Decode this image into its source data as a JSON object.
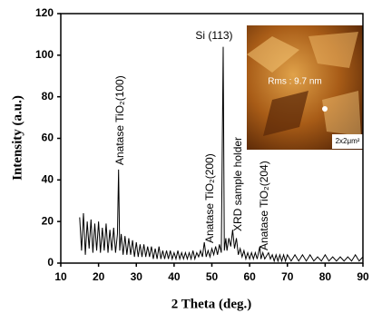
{
  "chart_data": {
    "type": "line",
    "xlabel": "2 Theta (deg.)",
    "ylabel": "Intensity (a.u.)",
    "x": [
      15,
      15.5,
      16,
      16.5,
      17,
      17.5,
      18,
      18.5,
      19,
      19.5,
      20,
      20.5,
      21,
      21.5,
      22,
      22.5,
      23,
      23.5,
      24,
      24.5,
      25,
      25.3,
      25.6,
      26,
      26.5,
      27,
      27.5,
      28,
      28.5,
      29,
      29.5,
      30,
      30.5,
      31,
      31.5,
      32,
      32.5,
      33,
      33.5,
      34,
      34.5,
      35,
      35.5,
      36,
      36.5,
      37,
      37.5,
      38,
      38.5,
      39,
      39.5,
      40,
      40.5,
      41,
      41.5,
      42,
      42.5,
      43,
      43.5,
      44,
      44.5,
      45,
      45.5,
      46,
      46.5,
      47,
      47.5,
      48,
      48.5,
      49,
      49.5,
      50,
      50.5,
      51,
      51.5,
      52,
      52.5,
      53,
      53.3,
      53.7,
      54,
      54.5,
      55,
      55.5,
      56,
      56.5,
      57,
      57.5,
      58,
      58.5,
      59,
      59.5,
      60,
      60.5,
      61,
      61.5,
      62,
      62.7,
      63,
      63.5,
      64,
      65,
      65.5,
      66,
      66.5,
      67,
      67.5,
      68,
      68.5,
      69,
      69.5,
      70,
      71,
      72,
      73,
      74,
      75,
      76,
      77,
      78,
      79,
      80,
      81,
      82,
      83,
      84,
      85,
      86,
      87,
      88,
      89,
      90
    ],
    "values": [
      22,
      6,
      24,
      4,
      20,
      7,
      21,
      5,
      19,
      6,
      20,
      5,
      17,
      6,
      19,
      5,
      16,
      6,
      17,
      5,
      14,
      45,
      6,
      14,
      4,
      13,
      4,
      12,
      4,
      11,
      3,
      10,
      3,
      9,
      3,
      9,
      3,
      8,
      3,
      8,
      2,
      7,
      2,
      8,
      2,
      6,
      2,
      6,
      2,
      6,
      2,
      5,
      2,
      6,
      2,
      5,
      2,
      5,
      2,
      5,
      2,
      6,
      2,
      5,
      3,
      6,
      3,
      10,
      3,
      6,
      3,
      7,
      4,
      8,
      4,
      9,
      5,
      104,
      6,
      12,
      6,
      12,
      8,
      16,
      7,
      12,
      4,
      7,
      3,
      6,
      2,
      5,
      2,
      5,
      2,
      5,
      2,
      8,
      2,
      5,
      2,
      5,
      2,
      4,
      1,
      4,
      1,
      4,
      1,
      4,
      1,
      4,
      1,
      4,
      1,
      4,
      1,
      4,
      1,
      3,
      1,
      4,
      1,
      3,
      1,
      3,
      1,
      3,
      1,
      4,
      1,
      3
    ],
    "color": "#000000",
    "xlim": [
      10,
      90
    ],
    "xticks": [
      10,
      20,
      30,
      40,
      50,
      60,
      70,
      80,
      90
    ],
    "ylim": [
      0,
      120
    ],
    "yticks": [
      0,
      20,
      40,
      60,
      80,
      100,
      120
    ],
    "annotations": [
      "Anatase TiO₂(100)",
      "Si (113)",
      "Anatase TiO₂(200)",
      "XRD sample holder",
      "Anatase TiO₂(204)"
    ],
    "inset": {
      "rms": "Rms : 9.7 nm",
      "scale": "2x2μm²"
    }
  }
}
